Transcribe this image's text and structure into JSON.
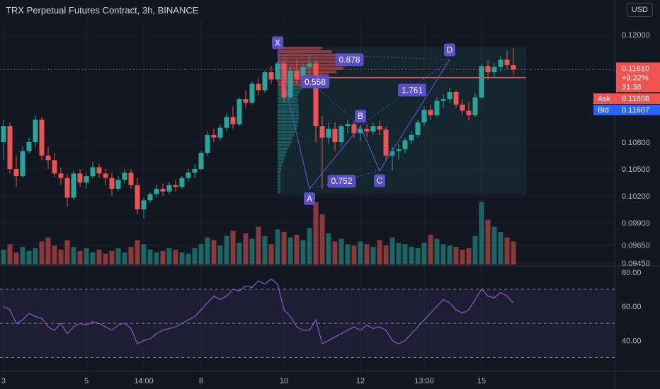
{
  "header": {
    "title": "TRX Perpetual Futures Contract, 3h, BINANCE",
    "currency_button": "USD"
  },
  "price_box": {
    "price": "0.11610",
    "change": "+9.22%",
    "countdown": "31:38"
  },
  "ask": {
    "label": "Ask",
    "value": "0.11608"
  },
  "bid": {
    "label": "Bid",
    "value": "0.11607"
  },
  "price_axis_ticks": [
    "0.12000",
    "0.10800",
    "0.10500",
    "0.10200",
    "0.09900",
    "0.09650",
    "0.09450"
  ],
  "rsi_axis_ticks": [
    "80.00",
    "60.00",
    "40.00"
  ],
  "time_axis_ticks": [
    "3",
    "5",
    "14:00",
    "8",
    "10",
    "12",
    "13:00",
    "15"
  ],
  "pattern": {
    "points": [
      "X",
      "A",
      "B",
      "C",
      "D"
    ],
    "ratios": [
      "0.878",
      "0.558",
      "1.761",
      "0.752"
    ]
  },
  "colors": {
    "bull": "#26a69a",
    "bear": "#ef5350",
    "pattern": "#5b4fc9",
    "rsi": "#7e57c2",
    "bg": "#131722"
  },
  "chart_data": {
    "type": "candlestick",
    "price_axis": {
      "min": 0.0945,
      "max": 0.1215,
      "ticks": [
        0.12,
        0.108,
        0.105,
        0.102,
        0.099,
        0.0965,
        0.0945
      ]
    },
    "candles": [
      [
        0.108,
        0.1105,
        0.106,
        0.1098
      ],
      [
        0.1098,
        0.1102,
        0.1045,
        0.105
      ],
      [
        0.105,
        0.1065,
        0.103,
        0.1042
      ],
      [
        0.1042,
        0.1075,
        0.104,
        0.107
      ],
      [
        0.107,
        0.1085,
        0.1068,
        0.108
      ],
      [
        0.108,
        0.111,
        0.1075,
        0.1105
      ],
      [
        0.1105,
        0.1108,
        0.106,
        0.1065
      ],
      [
        0.1065,
        0.1075,
        0.105,
        0.106
      ],
      [
        0.106,
        0.1068,
        0.104,
        0.1045
      ],
      [
        0.1045,
        0.1052,
        0.1032,
        0.104
      ],
      [
        0.104,
        0.1045,
        0.1008,
        0.1018
      ],
      [
        0.1018,
        0.1048,
        0.1015,
        0.1045
      ],
      [
        0.1045,
        0.105,
        0.103,
        0.1035
      ],
      [
        0.1035,
        0.1046,
        0.1028,
        0.1042
      ],
      [
        0.1042,
        0.1058,
        0.104,
        0.1052
      ],
      [
        0.1052,
        0.1056,
        0.104,
        0.1045
      ],
      [
        0.1045,
        0.105,
        0.1032,
        0.104
      ],
      [
        0.104,
        0.1046,
        0.102,
        0.1028
      ],
      [
        0.1028,
        0.1042,
        0.1025,
        0.1038
      ],
      [
        0.1038,
        0.105,
        0.1034,
        0.1046
      ],
      [
        0.1046,
        0.105,
        0.1028,
        0.1032
      ],
      [
        0.1032,
        0.104,
        0.1,
        0.1005
      ],
      [
        0.1005,
        0.1018,
        0.0995,
        0.1015
      ],
      [
        0.1015,
        0.1025,
        0.1012,
        0.1022
      ],
      [
        0.1022,
        0.1032,
        0.1018,
        0.1028
      ],
      [
        0.1028,
        0.1034,
        0.102,
        0.1025
      ],
      [
        0.1025,
        0.1036,
        0.1022,
        0.1032
      ],
      [
        0.1032,
        0.1038,
        0.1025,
        0.103
      ],
      [
        0.103,
        0.1042,
        0.1028,
        0.104
      ],
      [
        0.104,
        0.105,
        0.1036,
        0.1046
      ],
      [
        0.1046,
        0.1055,
        0.104,
        0.105
      ],
      [
        0.105,
        0.107,
        0.1048,
        0.1068
      ],
      [
        0.1068,
        0.1092,
        0.1065,
        0.1088
      ],
      [
        0.1088,
        0.1095,
        0.108,
        0.1085
      ],
      [
        0.1085,
        0.11,
        0.1082,
        0.1096
      ],
      [
        0.1096,
        0.1112,
        0.1092,
        0.1108
      ],
      [
        0.1108,
        0.112,
        0.1095,
        0.11
      ],
      [
        0.11,
        0.113,
        0.1098,
        0.1128
      ],
      [
        0.1128,
        0.1138,
        0.1118,
        0.1124
      ],
      [
        0.1124,
        0.1148,
        0.1122,
        0.1145
      ],
      [
        0.1145,
        0.1152,
        0.1132,
        0.1138
      ],
      [
        0.1138,
        0.116,
        0.1135,
        0.1158
      ],
      [
        0.1158,
        0.1165,
        0.1145,
        0.115
      ],
      [
        0.115,
        0.117,
        0.1148,
        0.1168
      ],
      [
        0.1168,
        0.1172,
        0.1125,
        0.113
      ],
      [
        0.113,
        0.1165,
        0.1128,
        0.116
      ],
      [
        0.116,
        0.1172,
        0.1145,
        0.115
      ],
      [
        0.115,
        0.1168,
        0.114,
        0.1164
      ],
      [
        0.1164,
        0.1178,
        0.115,
        0.1168
      ],
      [
        0.1168,
        0.1172,
        0.108,
        0.1098
      ],
      [
        0.1098,
        0.111,
        0.1028,
        0.1085
      ],
      [
        0.1085,
        0.1102,
        0.1078,
        0.1095
      ],
      [
        0.1095,
        0.1102,
        0.107,
        0.108
      ],
      [
        0.108,
        0.11,
        0.1075,
        0.1098
      ],
      [
        0.1098,
        0.1105,
        0.109,
        0.11
      ],
      [
        0.11,
        0.1104,
        0.1085,
        0.109
      ],
      [
        0.109,
        0.1098,
        0.1082,
        0.1095
      ],
      [
        0.1095,
        0.11,
        0.1086,
        0.1092
      ],
      [
        0.1092,
        0.1102,
        0.1088,
        0.1098
      ],
      [
        0.1098,
        0.1104,
        0.1088,
        0.1094
      ],
      [
        0.1094,
        0.1098,
        0.106,
        0.1065
      ],
      [
        0.1065,
        0.1075,
        0.1048,
        0.107
      ],
      [
        0.107,
        0.1078,
        0.106,
        0.1072
      ],
      [
        0.1072,
        0.1085,
        0.1068,
        0.1082
      ],
      [
        0.1082,
        0.1092,
        0.1078,
        0.1088
      ],
      [
        0.1088,
        0.1105,
        0.1085,
        0.1102
      ],
      [
        0.1102,
        0.112,
        0.1098,
        0.1116
      ],
      [
        0.1116,
        0.1122,
        0.1105,
        0.111
      ],
      [
        0.111,
        0.113,
        0.1108,
        0.1126
      ],
      [
        0.1126,
        0.1134,
        0.1118,
        0.1128
      ],
      [
        0.1128,
        0.114,
        0.1124,
        0.1136
      ],
      [
        0.1136,
        0.1138,
        0.1118,
        0.1122
      ],
      [
        0.1122,
        0.1128,
        0.111,
        0.1115
      ],
      [
        0.1115,
        0.1125,
        0.1104,
        0.111
      ],
      [
        0.111,
        0.1135,
        0.1108,
        0.113
      ],
      [
        0.113,
        0.1168,
        0.1128,
        0.1165
      ],
      [
        0.1165,
        0.1172,
        0.115,
        0.1158
      ],
      [
        0.1158,
        0.1168,
        0.1152,
        0.1164
      ],
      [
        0.1164,
        0.1176,
        0.1158,
        0.1172
      ],
      [
        0.1172,
        0.1182,
        0.1162,
        0.1166
      ],
      [
        0.1166,
        0.1185,
        0.1155,
        0.1161
      ]
    ],
    "volume": [
      22,
      30,
      18,
      26,
      20,
      24,
      34,
      40,
      28,
      22,
      36,
      26,
      20,
      24,
      18,
      22,
      16,
      20,
      24,
      18,
      26,
      36,
      30,
      22,
      18,
      20,
      24,
      22,
      18,
      16,
      24,
      30,
      40,
      36,
      28,
      42,
      50,
      32,
      46,
      38,
      56,
      42,
      30,
      52,
      48,
      40,
      44,
      36,
      54,
      92,
      74,
      46,
      34,
      38,
      30,
      28,
      34,
      30,
      26,
      36,
      28,
      40,
      32,
      30,
      26,
      24,
      32,
      44,
      38,
      30,
      28,
      26,
      22,
      24,
      42,
      92,
      66,
      56,
      48,
      40,
      34
    ],
    "volume_max": 92,
    "rsi_axis": {
      "min": 24,
      "max": 82,
      "ticks": [
        80,
        60,
        40
      ]
    },
    "rsi": [
      60,
      58,
      50,
      52,
      56,
      54,
      53,
      48,
      46,
      50,
      44,
      48,
      50,
      49,
      51,
      50,
      48,
      46,
      49,
      50,
      47,
      38,
      40,
      41,
      44,
      46,
      47,
      48,
      50,
      52,
      54,
      58,
      62,
      66,
      64,
      66,
      70,
      69,
      72,
      71,
      75,
      73,
      76,
      73,
      58,
      54,
      48,
      46,
      46,
      52,
      38,
      40,
      42,
      44,
      46,
      48,
      46,
      49,
      47,
      48,
      46,
      40,
      38,
      40,
      44,
      48,
      52,
      56,
      60,
      64,
      62,
      58,
      56,
      58,
      64,
      70,
      66,
      65,
      68,
      66,
      62
    ],
    "x_ticks": [
      {
        "i": 0,
        "label": "3"
      },
      {
        "i": 13,
        "label": "5"
      },
      {
        "i": 22,
        "label": "14:00"
      },
      {
        "i": 31,
        "label": "8"
      },
      {
        "i": 44,
        "label": "10"
      },
      {
        "i": 56,
        "label": "12"
      },
      {
        "i": 66,
        "label": "13:00"
      },
      {
        "i": 75,
        "label": "15"
      }
    ],
    "harmonic": [
      {
        "label": "X",
        "i": 43,
        "price": 0.118
      },
      {
        "label": "A",
        "i": 48,
        "price": 0.1028
      },
      {
        "label": "B",
        "i": 56,
        "price": 0.1098
      },
      {
        "label": "C",
        "i": 59,
        "price": 0.1048
      },
      {
        "label": "D",
        "i": 70,
        "price": 0.1172
      }
    ],
    "current_price": 0.1161,
    "resistance_level": 0.1152
  }
}
